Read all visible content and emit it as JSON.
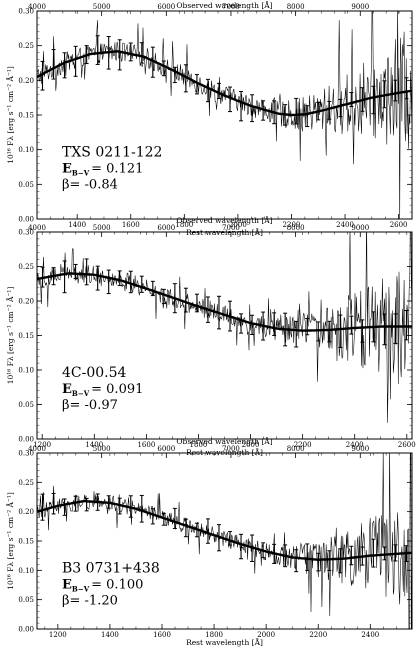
{
  "chart_data": [
    {
      "type": "line",
      "object": "TXS 0211-122",
      "ebv": "0.121",
      "beta": "-0.84",
      "xlabel": "Rest wavelength [Å]",
      "xlabel_top": "Observed wavelength [Å]",
      "ylabel": "10¹⁶ Fλ [erg s⁻¹ cm⁻² Å⁻¹]",
      "xlim": [
        1250,
        2650
      ],
      "ylim": [
        0,
        0.3
      ],
      "xticks": [
        1200,
        1400,
        1600,
        1800,
        2000,
        2200,
        2400,
        2600
      ],
      "top_lim": [
        4000,
        9800
      ],
      "top_ticks": [
        4000,
        5000,
        6000,
        7000,
        8000,
        9000
      ],
      "yticks": [
        "0.00",
        "0.05",
        "0.10",
        "0.15",
        "0.20",
        "0.25",
        "0.30"
      ],
      "model": {
        "x": [
          1250,
          1350,
          1450,
          1550,
          1650,
          1750,
          1850,
          1950,
          2050,
          2150,
          2200,
          2250,
          2300,
          2400,
          2500,
          2600,
          2650
        ],
        "y": [
          0.205,
          0.225,
          0.238,
          0.242,
          0.234,
          0.216,
          0.196,
          0.178,
          0.163,
          0.152,
          0.15,
          0.151,
          0.155,
          0.165,
          0.175,
          0.182,
          0.185
        ]
      },
      "noise": 0.015,
      "noise_red": 0.08
    },
    {
      "type": "line",
      "object": "4C-00.54",
      "ebv": "0.091",
      "beta": "-0.97",
      "xlabel": "Rest wavelength [Å]",
      "xlabel_top": "Observed wavelength [Å]",
      "ylabel": "10¹⁶ Fλ [erg s⁻¹ cm⁻² Å⁻¹]",
      "xlim": [
        1180,
        2620
      ],
      "ylim": [
        0,
        0.3
      ],
      "xticks": [
        1200,
        1400,
        1600,
        1800,
        2000,
        2200,
        2400,
        2600
      ],
      "top_lim": [
        4000,
        9800
      ],
      "top_ticks": [
        4000,
        5000,
        6000,
        7000,
        8000,
        9000
      ],
      "yticks": [
        "0.00",
        "0.05",
        "0.10",
        "0.15",
        "0.20",
        "0.25",
        "0.30"
      ],
      "model": {
        "x": [
          1180,
          1300,
          1400,
          1500,
          1600,
          1700,
          1800,
          1900,
          2000,
          2100,
          2200,
          2300,
          2400,
          2500,
          2620
        ],
        "y": [
          0.232,
          0.24,
          0.238,
          0.23,
          0.218,
          0.205,
          0.192,
          0.18,
          0.168,
          0.16,
          0.157,
          0.158,
          0.161,
          0.163,
          0.163
        ]
      },
      "noise": 0.014,
      "noise_red": 0.09
    },
    {
      "type": "line",
      "object": "B3 0731+438",
      "ebv": "0.100",
      "beta": "-1.20",
      "xlabel": "Rest wavelength [Å]",
      "xlabel_top": "Observed wavelength [Å]",
      "ylabel": "10¹⁶ Fλ [erg s⁻¹ cm⁻² Å⁻¹]",
      "xlim": [
        1120,
        2560
      ],
      "ylim": [
        0,
        0.3
      ],
      "xticks": [
        1200,
        1400,
        1600,
        1800,
        2000,
        2200,
        2400
      ],
      "top_lim": [
        4000,
        9800
      ],
      "top_ticks": [
        4000,
        5000,
        6000,
        7000,
        8000,
        9000
      ],
      "yticks": [
        "0.00",
        "0.05",
        "0.10",
        "0.15",
        "0.20",
        "0.25",
        "0.30"
      ],
      "model": {
        "x": [
          1120,
          1200,
          1300,
          1400,
          1500,
          1600,
          1700,
          1800,
          1900,
          2000,
          2100,
          2200,
          2300,
          2400,
          2560
        ],
        "y": [
          0.2,
          0.21,
          0.218,
          0.215,
          0.205,
          0.19,
          0.175,
          0.16,
          0.145,
          0.132,
          0.122,
          0.118,
          0.12,
          0.125,
          0.13
        ]
      },
      "noise": 0.014,
      "noise_red": 0.09
    }
  ]
}
